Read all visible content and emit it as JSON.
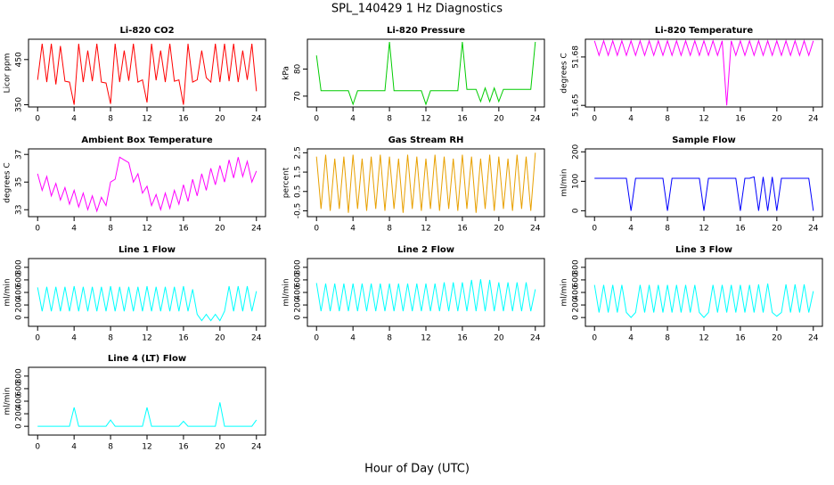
{
  "title": "SPL_140429  1 Hz Diagnostics",
  "xlabel": "Hour of Day (UTC)",
  "chart_data": [
    {
      "type": "line",
      "title": "Li-820 CO2",
      "ylabel": "Licor ppm",
      "color": "#ff0000",
      "xlim": [
        -1,
        25
      ],
      "xticks": [
        0,
        4,
        8,
        12,
        16,
        20,
        24
      ],
      "ylim": [
        345,
        495
      ],
      "yticks": [
        350,
        450
      ],
      "x": [
        0,
        0.5,
        1,
        1.5,
        2,
        2.5,
        3,
        3.5,
        4,
        4.5,
        5,
        5.5,
        6,
        6.5,
        7,
        7.5,
        8,
        8.5,
        9,
        9.5,
        10,
        10.5,
        11,
        11.5,
        12,
        12.5,
        13,
        13.5,
        14,
        14.5,
        15,
        15.5,
        16,
        16.5,
        17,
        17.5,
        18,
        18.5,
        19,
        19.5,
        20,
        20.5,
        21,
        21.5,
        22,
        22.5,
        23,
        23.5,
        24
      ],
      "values": [
        405,
        485,
        400,
        485,
        395,
        480,
        402,
        400,
        350,
        485,
        400,
        470,
        402,
        485,
        400,
        398,
        352,
        485,
        400,
        470,
        403,
        485,
        400,
        405,
        355,
        485,
        404,
        470,
        400,
        485,
        402,
        405,
        350,
        485,
        400,
        405,
        470,
        410,
        400,
        485,
        400,
        485,
        402,
        485,
        400,
        470,
        405,
        485,
        380
      ]
    },
    {
      "type": "line",
      "title": "Li-820 Pressure",
      "ylabel": "kPa",
      "color": "#00cc00",
      "xlim": [
        -1,
        25
      ],
      "xticks": [
        0,
        4,
        8,
        12,
        16,
        20,
        24
      ],
      "ylim": [
        66,
        91
      ],
      "yticks": [
        70,
        80
      ],
      "x": [
        0,
        0.5,
        1,
        1.5,
        2,
        2.5,
        3,
        3.5,
        4,
        4.5,
        5,
        5.5,
        6,
        6.5,
        7,
        7.5,
        8,
        8.5,
        9,
        9.5,
        10,
        10.5,
        11,
        11.5,
        12,
        12.5,
        13,
        13.5,
        14,
        14.5,
        15,
        15.5,
        16,
        16.5,
        17,
        17.5,
        18,
        18.5,
        19,
        19.5,
        20,
        20.5,
        21,
        21.5,
        22,
        22.5,
        23,
        23.5,
        24
      ],
      "values": [
        85,
        72,
        72,
        72,
        72,
        72,
        72,
        72,
        67,
        72,
        72,
        72,
        72,
        72,
        72,
        72,
        90,
        72,
        72,
        72,
        72,
        72,
        72,
        72,
        67,
        72,
        72,
        72,
        72,
        72,
        72,
        72,
        90,
        72.5,
        72.5,
        72.5,
        68,
        73,
        68,
        73,
        68,
        72.5,
        72.5,
        72.5,
        72.5,
        72.5,
        72.5,
        72.5,
        90
      ]
    },
    {
      "type": "line",
      "title": "Li-820 Temperature",
      "ylabel": "degrees C",
      "color": "#ff00ff",
      "xlim": [
        -1,
        25
      ],
      "xticks": [
        0,
        4,
        8,
        12,
        16,
        20,
        24
      ],
      "ylim": [
        51.649,
        51.691
      ],
      "yticks": [
        51.65,
        51.68
      ],
      "x": [
        0,
        0.5,
        1,
        1.5,
        2,
        2.5,
        3,
        3.5,
        4,
        4.5,
        5,
        5.5,
        6,
        6.5,
        7,
        7.5,
        8,
        8.5,
        9,
        9.5,
        10,
        10.5,
        11,
        11.5,
        12,
        12.5,
        13,
        13.5,
        14,
        14.5,
        15,
        15.5,
        16,
        16.5,
        17,
        17.5,
        18,
        18.5,
        19,
        19.5,
        20,
        20.5,
        21,
        21.5,
        22,
        22.5,
        23,
        23.5,
        24
      ],
      "values": [
        51.69,
        51.681,
        51.69,
        51.681,
        51.69,
        51.681,
        51.69,
        51.681,
        51.69,
        51.681,
        51.69,
        51.681,
        51.69,
        51.681,
        51.69,
        51.681,
        51.69,
        51.681,
        51.69,
        51.681,
        51.69,
        51.681,
        51.69,
        51.681,
        51.69,
        51.681,
        51.69,
        51.681,
        51.69,
        51.65,
        51.69,
        51.681,
        51.69,
        51.681,
        51.69,
        51.681,
        51.69,
        51.681,
        51.69,
        51.681,
        51.69,
        51.681,
        51.69,
        51.681,
        51.69,
        51.681,
        51.69,
        51.681,
        51.69
      ]
    },
    {
      "type": "line",
      "title": "Ambient Box Temperature",
      "ylabel": "degrees C",
      "color": "#ff00ff",
      "xlim": [
        -1,
        25
      ],
      "xticks": [
        0,
        4,
        8,
        12,
        16,
        20,
        24
      ],
      "ylim": [
        32.5,
        37.4
      ],
      "yticks": [
        33,
        35,
        37
      ],
      "x": [
        0,
        0.5,
        1,
        1.5,
        2,
        2.5,
        3,
        3.5,
        4,
        4.5,
        5,
        5.5,
        6,
        6.5,
        7,
        7.5,
        8,
        8.5,
        9,
        9.5,
        10,
        10.5,
        11,
        11.5,
        12,
        12.5,
        13,
        13.5,
        14,
        14.5,
        15,
        15.5,
        16,
        16.5,
        17,
        17.5,
        18,
        18.5,
        19,
        19.5,
        20,
        20.5,
        21,
        21.5,
        22,
        22.5,
        23,
        23.5,
        24
      ],
      "values": [
        35.6,
        34.4,
        35.4,
        34.0,
        34.9,
        33.7,
        34.6,
        33.4,
        34.4,
        33.2,
        34.2,
        33.0,
        34.0,
        32.9,
        33.9,
        33.3,
        35.0,
        35.2,
        36.8,
        36.6,
        36.4,
        35.0,
        35.6,
        34.2,
        34.7,
        33.3,
        34.1,
        33.0,
        34.2,
        33.1,
        34.4,
        33.4,
        34.8,
        33.6,
        35.2,
        34.0,
        35.6,
        34.4,
        36.0,
        34.8,
        36.2,
        35.0,
        36.6,
        35.3,
        36.8,
        35.4,
        36.5,
        35.0,
        35.8
      ]
    },
    {
      "type": "line",
      "title": "Gas Stream RH",
      "ylabel": "percent",
      "color": "#e8a000",
      "xlim": [
        -1,
        25
      ],
      "xticks": [
        0,
        4,
        8,
        12,
        16,
        20,
        24
      ],
      "ylim": [
        -0.8,
        2.7
      ],
      "yticks": [
        -0.5,
        0.5,
        1.5,
        2.5
      ],
      "x": [
        0,
        0.5,
        1,
        1.5,
        2,
        2.5,
        3,
        3.5,
        4,
        4.5,
        5,
        5.5,
        6,
        6.5,
        7,
        7.5,
        8,
        8.5,
        9,
        9.5,
        10,
        10.5,
        11,
        11.5,
        12,
        12.5,
        13,
        13.5,
        14,
        14.5,
        15,
        15.5,
        16,
        16.5,
        17,
        17.5,
        18,
        18.5,
        19,
        19.5,
        20,
        20.5,
        21,
        21.5,
        22,
        22.5,
        23,
        23.5,
        24
      ],
      "values": [
        2.3,
        -0.4,
        2.4,
        -0.5,
        2.2,
        -0.4,
        2.3,
        -0.6,
        2.4,
        -0.4,
        2.2,
        -0.5,
        2.3,
        -0.4,
        2.4,
        -0.5,
        2.3,
        -0.4,
        2.2,
        -0.6,
        2.4,
        -0.4,
        2.3,
        -0.5,
        2.2,
        -0.4,
        2.4,
        -0.5,
        2.3,
        -0.4,
        2.2,
        -0.5,
        2.4,
        -0.4,
        2.3,
        -0.6,
        2.2,
        -0.4,
        2.4,
        -0.5,
        2.3,
        -0.4,
        2.2,
        -0.5,
        2.4,
        -0.4,
        2.3,
        -0.5,
        2.5
      ]
    },
    {
      "type": "line",
      "title": "Sample Flow",
      "ylabel": "ml/min",
      "color": "#0000ff",
      "xlim": [
        -1,
        25
      ],
      "xticks": [
        0,
        4,
        8,
        12,
        16,
        20,
        24
      ],
      "ylim": [
        -20,
        210
      ],
      "yticks": [
        0,
        100,
        200
      ],
      "x": [
        0,
        0.5,
        1,
        1.5,
        2,
        2.5,
        3,
        3.5,
        4,
        4.5,
        5,
        5.5,
        6,
        6.5,
        7,
        7.5,
        8,
        8.5,
        9,
        9.5,
        10,
        10.5,
        11,
        11.5,
        12,
        12.5,
        13,
        13.5,
        14,
        14.5,
        15,
        15.5,
        16,
        16.5,
        17,
        17.5,
        18,
        18.5,
        19,
        19.5,
        20,
        20.5,
        21,
        21.5,
        22,
        22.5,
        23,
        23.5,
        24
      ],
      "values": [
        110,
        110,
        110,
        110,
        110,
        110,
        110,
        110,
        0,
        110,
        110,
        110,
        110,
        110,
        110,
        110,
        0,
        110,
        110,
        110,
        110,
        110,
        110,
        110,
        0,
        110,
        110,
        110,
        110,
        110,
        110,
        110,
        0,
        110,
        110,
        115,
        0,
        115,
        0,
        115,
        0,
        110,
        110,
        110,
        110,
        110,
        110,
        110,
        0
      ]
    },
    {
      "type": "line",
      "title": "Line 1 Flow",
      "ylabel": "ml/min",
      "color": "#00ffff",
      "xlim": [
        -1,
        25
      ],
      "xticks": [
        0,
        4,
        8,
        12,
        16,
        20,
        24
      ],
      "ylim": [
        -140,
        940
      ],
      "yticks": [
        0,
        200,
        400,
        600,
        800
      ],
      "x": [
        0,
        0.5,
        1,
        1.5,
        2,
        2.5,
        3,
        3.5,
        4,
        4.5,
        5,
        5.5,
        6,
        6.5,
        7,
        7.5,
        8,
        8.5,
        9,
        9.5,
        10,
        10.5,
        11,
        11.5,
        12,
        12.5,
        13,
        13.5,
        14,
        14.5,
        15,
        15.5,
        16,
        16.5,
        17,
        17.5,
        18,
        18.5,
        19,
        19.5,
        20,
        20.5,
        21,
        21.5,
        22,
        22.5,
        23,
        23.5,
        24
      ],
      "values": [
        480,
        100,
        490,
        100,
        490,
        100,
        490,
        100,
        500,
        100,
        490,
        100,
        490,
        100,
        490,
        100,
        500,
        100,
        490,
        100,
        490,
        100,
        490,
        100,
        500,
        100,
        490,
        100,
        490,
        100,
        490,
        100,
        500,
        100,
        450,
        50,
        -50,
        50,
        -50,
        50,
        -50,
        100,
        500,
        100,
        500,
        100,
        500,
        100,
        420
      ]
    },
    {
      "type": "line",
      "title": "Line 2 Flow",
      "ylabel": "ml/min",
      "color": "#00ffff",
      "xlim": [
        -1,
        25
      ],
      "xticks": [
        0,
        4,
        8,
        12,
        16,
        20,
        24
      ],
      "ylim": [
        -140,
        940
      ],
      "yticks": [
        0,
        200,
        400,
        600,
        800
      ],
      "x": [
        0,
        0.5,
        1,
        1.5,
        2,
        2.5,
        3,
        3.5,
        4,
        4.5,
        5,
        5.5,
        6,
        6.5,
        7,
        7.5,
        8,
        8.5,
        9,
        9.5,
        10,
        10.5,
        11,
        11.5,
        12,
        12.5,
        13,
        13.5,
        14,
        14.5,
        15,
        15.5,
        16,
        16.5,
        17,
        17.5,
        18,
        18.5,
        19,
        19.5,
        20,
        20.5,
        21,
        21.5,
        22,
        22.5,
        23,
        23.5,
        24
      ],
      "values": [
        550,
        100,
        540,
        100,
        540,
        100,
        540,
        100,
        540,
        100,
        540,
        100,
        540,
        100,
        540,
        100,
        540,
        100,
        540,
        100,
        540,
        100,
        540,
        100,
        540,
        100,
        540,
        100,
        560,
        100,
        560,
        100,
        560,
        100,
        600,
        100,
        610,
        100,
        600,
        100,
        560,
        100,
        560,
        100,
        560,
        100,
        560,
        100,
        450
      ]
    },
    {
      "type": "line",
      "title": "Line 3 Flow",
      "ylabel": "ml/min",
      "color": "#00ffff",
      "xlim": [
        -1,
        25
      ],
      "xticks": [
        0,
        4,
        8,
        12,
        16,
        20,
        24
      ],
      "ylim": [
        -140,
        940
      ],
      "yticks": [
        0,
        200,
        400,
        600,
        800
      ],
      "x": [
        0,
        0.5,
        1,
        1.5,
        2,
        2.5,
        3,
        3.5,
        4,
        4.5,
        5,
        5.5,
        6,
        6.5,
        7,
        7.5,
        8,
        8.5,
        9,
        9.5,
        10,
        10.5,
        11,
        11.5,
        12,
        12.5,
        13,
        13.5,
        14,
        14.5,
        15,
        15.5,
        16,
        16.5,
        17,
        17.5,
        18,
        18.5,
        19,
        19.5,
        20,
        20.5,
        21,
        21.5,
        22,
        22.5,
        23,
        23.5,
        24
      ],
      "values": [
        520,
        80,
        520,
        80,
        520,
        80,
        520,
        80,
        0,
        80,
        520,
        80,
        520,
        80,
        520,
        80,
        520,
        80,
        520,
        80,
        520,
        80,
        520,
        80,
        0,
        80,
        520,
        80,
        520,
        80,
        520,
        80,
        520,
        80,
        520,
        80,
        530,
        80,
        540,
        80,
        20,
        80,
        530,
        80,
        530,
        80,
        530,
        80,
        420
      ]
    },
    {
      "type": "line",
      "title": "Line 4 (LT) Flow",
      "ylabel": "ml/min",
      "color": "#00ffff",
      "xlim": [
        -1,
        25
      ],
      "xticks": [
        0,
        4,
        8,
        12,
        16,
        20,
        24
      ],
      "ylim": [
        -140,
        940
      ],
      "yticks": [
        0,
        200,
        400,
        600,
        800
      ],
      "x": [
        0,
        0.5,
        1,
        1.5,
        2,
        2.5,
        3,
        3.5,
        4,
        4.5,
        5,
        5.5,
        6,
        6.5,
        7,
        7.5,
        8,
        8.5,
        9,
        9.5,
        10,
        10.5,
        11,
        11.5,
        12,
        12.5,
        13,
        13.5,
        14,
        14.5,
        15,
        15.5,
        16,
        16.5,
        17,
        17.5,
        18,
        18.5,
        19,
        19.5,
        20,
        20.5,
        21,
        21.5,
        22,
        22.5,
        23,
        23.5,
        24
      ],
      "values": [
        0,
        0,
        0,
        0,
        0,
        0,
        0,
        0,
        300,
        0,
        0,
        0,
        0,
        0,
        0,
        0,
        100,
        0,
        0,
        0,
        0,
        0,
        0,
        0,
        300,
        0,
        0,
        0,
        0,
        0,
        0,
        0,
        80,
        0,
        0,
        0,
        0,
        0,
        0,
        0,
        380,
        0,
        0,
        0,
        0,
        0,
        0,
        0,
        100
      ]
    }
  ]
}
